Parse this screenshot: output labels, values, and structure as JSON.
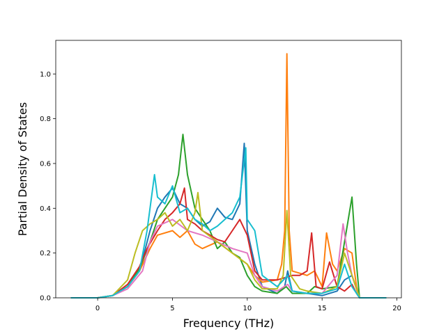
{
  "chart_data": {
    "type": "line",
    "title": "",
    "xlabel": "Frequency (THz)",
    "ylabel": "Partial Density of States",
    "xlim": [
      -2.8,
      20.3
    ],
    "ylim": [
      0,
      1.15
    ],
    "xticks": [
      0,
      5,
      10,
      15,
      20
    ],
    "yticks": [
      0.0,
      0.2,
      0.4,
      0.6,
      0.8,
      1.0
    ],
    "xtick_labels": [
      "0",
      "5",
      "10",
      "15",
      "20"
    ],
    "ytick_labels": [
      "0.0",
      "0.2",
      "0.4",
      "0.6",
      "0.8",
      "1.0"
    ],
    "grid": false,
    "legend": "none",
    "series": [
      {
        "color": "#1f77b4",
        "points": [
          [
            -1.8,
            0
          ],
          [
            0,
            0
          ],
          [
            1,
            0.01
          ],
          [
            2,
            0.05
          ],
          [
            2.8,
            0.12
          ],
          [
            3.5,
            0.3
          ],
          [
            4,
            0.4
          ],
          [
            4.5,
            0.45
          ],
          [
            5,
            0.49
          ],
          [
            5.5,
            0.42
          ],
          [
            6,
            0.4
          ],
          [
            6.5,
            0.35
          ],
          [
            7,
            0.32
          ],
          [
            7.5,
            0.34
          ],
          [
            8,
            0.4
          ],
          [
            8.5,
            0.36
          ],
          [
            9,
            0.35
          ],
          [
            9.5,
            0.42
          ],
          [
            9.8,
            0.69
          ],
          [
            10,
            0.3
          ],
          [
            10.5,
            0.15
          ],
          [
            11,
            0.05
          ],
          [
            12,
            0.02
          ],
          [
            12.5,
            0.05
          ],
          [
            12.7,
            0.12
          ],
          [
            13,
            0.03
          ],
          [
            14,
            0.02
          ],
          [
            15,
            0.01
          ],
          [
            16,
            0.03
          ],
          [
            16.5,
            0.08
          ],
          [
            17,
            0.1
          ],
          [
            17.5,
            0
          ],
          [
            19.3,
            0
          ]
        ]
      },
      {
        "color": "#ff7f0e",
        "points": [
          [
            -1.8,
            0
          ],
          [
            0,
            0
          ],
          [
            1,
            0.01
          ],
          [
            2,
            0.05
          ],
          [
            2.8,
            0.12
          ],
          [
            3.5,
            0.22
          ],
          [
            4,
            0.28
          ],
          [
            5,
            0.3
          ],
          [
            5.5,
            0.27
          ],
          [
            6,
            0.3
          ],
          [
            6.5,
            0.24
          ],
          [
            7,
            0.22
          ],
          [
            8,
            0.25
          ],
          [
            9,
            0.2
          ],
          [
            10,
            0.15
          ],
          [
            10.5,
            0.1
          ],
          [
            11,
            0.07
          ],
          [
            12,
            0.08
          ],
          [
            12.3,
            0.15
          ],
          [
            12.5,
            0.3
          ],
          [
            12.65,
            1.09
          ],
          [
            12.8,
            0.3
          ],
          [
            13,
            0.12
          ],
          [
            14,
            0.1
          ],
          [
            14.5,
            0.12
          ],
          [
            15,
            0.05
          ],
          [
            15.3,
            0.29
          ],
          [
            15.7,
            0.15
          ],
          [
            16,
            0.12
          ],
          [
            16.5,
            0.22
          ],
          [
            17,
            0.2
          ],
          [
            17.3,
            0.05
          ],
          [
            17.5,
            0
          ],
          [
            19.3,
            0
          ]
        ]
      },
      {
        "color": "#2ca02c",
        "points": [
          [
            -1.8,
            0
          ],
          [
            0,
            0
          ],
          [
            1,
            0.01
          ],
          [
            2,
            0.05
          ],
          [
            2.8,
            0.13
          ],
          [
            3.5,
            0.25
          ],
          [
            4,
            0.35
          ],
          [
            4.5,
            0.4
          ],
          [
            5,
            0.45
          ],
          [
            5.4,
            0.55
          ],
          [
            5.7,
            0.73
          ],
          [
            6,
            0.55
          ],
          [
            6.5,
            0.4
          ],
          [
            7,
            0.35
          ],
          [
            7.5,
            0.3
          ],
          [
            8,
            0.22
          ],
          [
            8.5,
            0.25
          ],
          [
            9,
            0.2
          ],
          [
            9.5,
            0.18
          ],
          [
            10,
            0.1
          ],
          [
            10.5,
            0.05
          ],
          [
            11,
            0.03
          ],
          [
            12,
            0.02
          ],
          [
            12.6,
            0.05
          ],
          [
            13,
            0.02
          ],
          [
            14,
            0.02
          ],
          [
            14.5,
            0.05
          ],
          [
            15,
            0.04
          ],
          [
            16,
            0.05
          ],
          [
            16.5,
            0.25
          ],
          [
            17,
            0.45
          ],
          [
            17.3,
            0.15
          ],
          [
            17.5,
            0
          ],
          [
            19.3,
            0
          ]
        ]
      },
      {
        "color": "#d62728",
        "points": [
          [
            -1.8,
            0
          ],
          [
            0,
            0
          ],
          [
            1,
            0.01
          ],
          [
            2,
            0.06
          ],
          [
            2.8,
            0.14
          ],
          [
            3.3,
            0.22
          ],
          [
            4,
            0.3
          ],
          [
            4.5,
            0.35
          ],
          [
            5,
            0.38
          ],
          [
            5.5,
            0.42
          ],
          [
            5.8,
            0.49
          ],
          [
            6,
            0.35
          ],
          [
            6.5,
            0.33
          ],
          [
            7,
            0.3
          ],
          [
            7.5,
            0.28
          ],
          [
            8,
            0.26
          ],
          [
            8.5,
            0.25
          ],
          [
            9,
            0.3
          ],
          [
            9.5,
            0.35
          ],
          [
            10,
            0.28
          ],
          [
            10.5,
            0.12
          ],
          [
            11,
            0.08
          ],
          [
            12,
            0.08
          ],
          [
            13,
            0.1
          ],
          [
            13.5,
            0.1
          ],
          [
            14,
            0.12
          ],
          [
            14.3,
            0.29
          ],
          [
            14.6,
            0.05
          ],
          [
            15,
            0.04
          ],
          [
            15.5,
            0.16
          ],
          [
            16,
            0.05
          ],
          [
            16.5,
            0.03
          ],
          [
            17,
            0.06
          ],
          [
            17.3,
            0.02
          ],
          [
            17.5,
            0
          ],
          [
            19.3,
            0
          ]
        ]
      },
      {
        "color": "#e377c2",
        "points": [
          [
            -1.8,
            0
          ],
          [
            0,
            0
          ],
          [
            1,
            0.01
          ],
          [
            2,
            0.04
          ],
          [
            3,
            0.12
          ],
          [
            3.5,
            0.25
          ],
          [
            4,
            0.32
          ],
          [
            5,
            0.35
          ],
          [
            6,
            0.3
          ],
          [
            7,
            0.28
          ],
          [
            8,
            0.25
          ],
          [
            9,
            0.22
          ],
          [
            10,
            0.2
          ],
          [
            10.5,
            0.1
          ],
          [
            11,
            0.05
          ],
          [
            12,
            0.03
          ],
          [
            12.7,
            0.06
          ],
          [
            13,
            0.03
          ],
          [
            14,
            0.02
          ],
          [
            15,
            0.02
          ],
          [
            16,
            0.1
          ],
          [
            16.4,
            0.33
          ],
          [
            16.7,
            0.2
          ],
          [
            17,
            0.1
          ],
          [
            17.5,
            0
          ],
          [
            19.3,
            0
          ]
        ]
      },
      {
        "color": "#bcbd22",
        "points": [
          [
            -1.8,
            0
          ],
          [
            0,
            0
          ],
          [
            1,
            0.01
          ],
          [
            2,
            0.08
          ],
          [
            2.5,
            0.2
          ],
          [
            3,
            0.3
          ],
          [
            3.5,
            0.33
          ],
          [
            4,
            0.35
          ],
          [
            4.5,
            0.38
          ],
          [
            5,
            0.32
          ],
          [
            5.5,
            0.35
          ],
          [
            6,
            0.3
          ],
          [
            6.5,
            0.38
          ],
          [
            6.7,
            0.47
          ],
          [
            7,
            0.3
          ],
          [
            8,
            0.25
          ],
          [
            9,
            0.2
          ],
          [
            10,
            0.15
          ],
          [
            10.5,
            0.08
          ],
          [
            11,
            0.04
          ],
          [
            12,
            0.04
          ],
          [
            12.4,
            0.1
          ],
          [
            12.65,
            0.39
          ],
          [
            12.9,
            0.1
          ],
          [
            13.5,
            0.04
          ],
          [
            14,
            0.03
          ],
          [
            15,
            0.02
          ],
          [
            16,
            0.05
          ],
          [
            16.5,
            0.2
          ],
          [
            17,
            0.1
          ],
          [
            17.5,
            0
          ],
          [
            19.3,
            0
          ]
        ]
      },
      {
        "color": "#17becf",
        "points": [
          [
            -1.8,
            0
          ],
          [
            0,
            0
          ],
          [
            1,
            0.01
          ],
          [
            2,
            0.05
          ],
          [
            2.8,
            0.12
          ],
          [
            3.3,
            0.3
          ],
          [
            3.8,
            0.55
          ],
          [
            4,
            0.45
          ],
          [
            4.5,
            0.42
          ],
          [
            5,
            0.5
          ],
          [
            5.5,
            0.38
          ],
          [
            6,
            0.4
          ],
          [
            6.5,
            0.35
          ],
          [
            7,
            0.33
          ],
          [
            7.5,
            0.3
          ],
          [
            8,
            0.32
          ],
          [
            8.5,
            0.35
          ],
          [
            9,
            0.38
          ],
          [
            9.5,
            0.45
          ],
          [
            9.9,
            0.67
          ],
          [
            10,
            0.35
          ],
          [
            10.5,
            0.3
          ],
          [
            11,
            0.1
          ],
          [
            12,
            0.05
          ],
          [
            12.7,
            0.1
          ],
          [
            13,
            0.03
          ],
          [
            14,
            0.02
          ],
          [
            15,
            0.02
          ],
          [
            16,
            0.04
          ],
          [
            16.5,
            0.15
          ],
          [
            17,
            0.05
          ],
          [
            17.5,
            0
          ],
          [
            19.3,
            0
          ]
        ]
      }
    ]
  }
}
